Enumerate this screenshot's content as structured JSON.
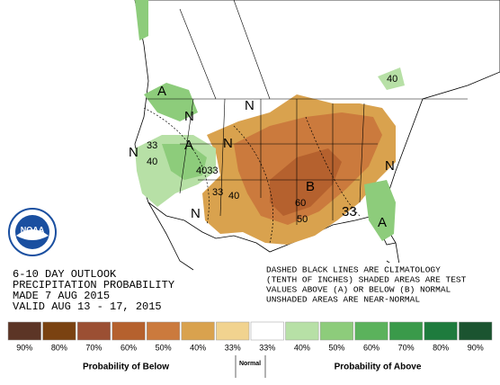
{
  "logo": "NOAA",
  "map_labels": [
    "A",
    "N",
    "33",
    "40",
    "N",
    "A",
    "4033",
    "N",
    "N",
    "33",
    "40",
    "B",
    "60",
    "50",
    "N",
    "A",
    "40",
    "N",
    "33"
  ],
  "info": [
    "6-10 DAY OUTLOOK",
    "PRECIPITATION PROBABILITY",
    "MADE  7 AUG 2015",
    "VALID  AUG 13 - 17, 2015"
  ],
  "note": [
    "DASHED BLACK LINES ARE CLIMATOLOGY",
    "(TENTH OF INCHES) SHADED AREAS ARE TEST",
    "VALUES ABOVE (A) OR BELOW (B) NORMAL",
    "UNSHADED AREAS ARE NEAR-NORMAL"
  ],
  "legend": {
    "items": [
      {
        "label": "90%",
        "color": "#5c3526"
      },
      {
        "label": "80%",
        "color": "#7a4211"
      },
      {
        "label": "70%",
        "color": "#9b4f33"
      },
      {
        "label": "60%",
        "color": "#b5612e"
      },
      {
        "label": "50%",
        "color": "#cb7a3d"
      },
      {
        "label": "40%",
        "color": "#d9a24e"
      },
      {
        "label": "33%",
        "color": "#f1d38f"
      },
      {
        "label": "33%",
        "color": "#ffffff"
      },
      {
        "label": "40%",
        "color": "#b7e0a6"
      },
      {
        "label": "50%",
        "color": "#8dcc7b"
      },
      {
        "label": "60%",
        "color": "#5bb25c"
      },
      {
        "label": "70%",
        "color": "#3a9a4a"
      },
      {
        "label": "80%",
        "color": "#1e7b3d"
      },
      {
        "label": "90%",
        "color": "#1b5430"
      }
    ],
    "below_label": "Probability of Below",
    "normal_label": "Normal",
    "above_label": "Probability of Above"
  }
}
